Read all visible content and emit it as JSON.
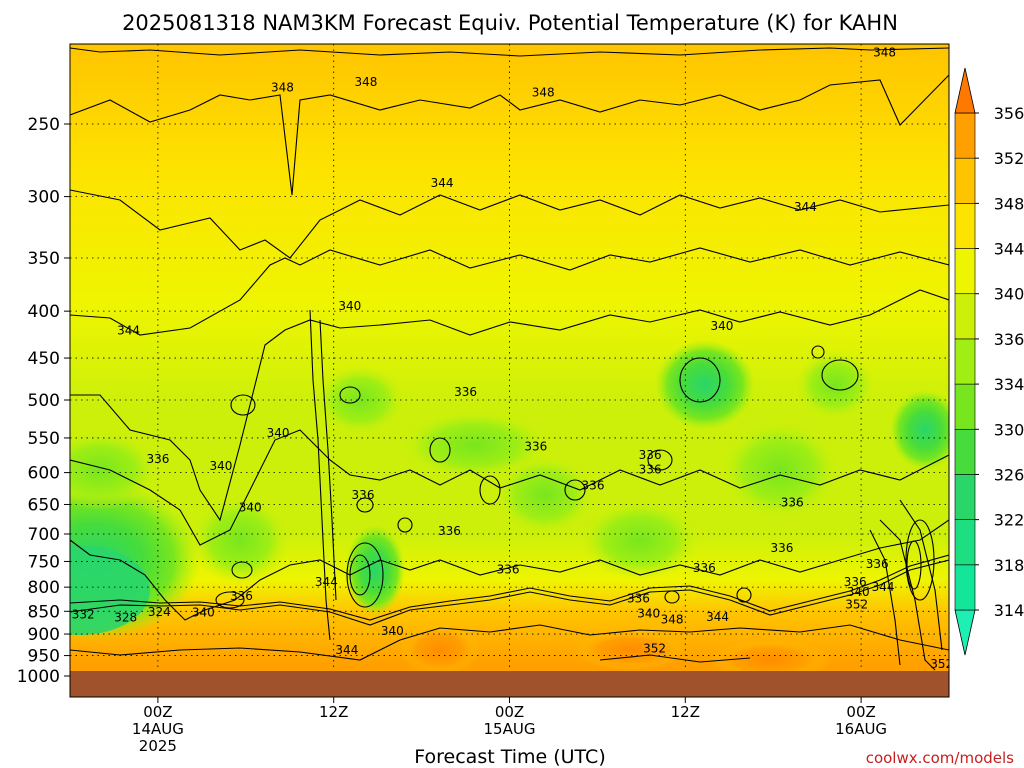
{
  "chart_data": {
    "type": "heatmap",
    "title": "2025081318 NAM3KM Forecast Equiv. Potential Temperature (K) for KAHN",
    "xlabel": "Forecast Time (UTC)",
    "ylabel": "",
    "y_scale": "log",
    "y_reversed": true,
    "y_ticks": [
      250,
      300,
      350,
      400,
      450,
      500,
      550,
      600,
      650,
      700,
      750,
      800,
      850,
      900,
      950,
      1000
    ],
    "ylim": [
      200,
      1000
    ],
    "x_ticks": [
      {
        "hour": 6,
        "lines": [
          "00Z",
          "14AUG",
          "2025"
        ]
      },
      {
        "hour": 18,
        "lines": [
          "12Z",
          "",
          ""
        ]
      },
      {
        "hour": 30,
        "lines": [
          "00Z",
          "15AUG",
          ""
        ]
      },
      {
        "hour": 42,
        "lines": [
          "12Z",
          "",
          ""
        ]
      },
      {
        "hour": 54,
        "lines": [
          "00Z",
          "16AUG",
          ""
        ]
      }
    ],
    "xlim": [
      0,
      60
    ],
    "grid": true,
    "colorbar": {
      "levels": [
        314,
        318,
        322,
        326,
        330,
        334,
        336,
        340,
        344,
        348,
        352,
        356
      ],
      "bands": [
        {
          "from": 310,
          "to": 314,
          "color": "#1ef0b4"
        },
        {
          "from": 314,
          "to": 318,
          "color": "#14e699"
        },
        {
          "from": 318,
          "to": 322,
          "color": "#1ede82"
        },
        {
          "from": 322,
          "to": 326,
          "color": "#2ad66a"
        },
        {
          "from": 326,
          "to": 330,
          "color": "#46dc3c"
        },
        {
          "from": 330,
          "to": 334,
          "color": "#78e61e"
        },
        {
          "from": 334,
          "to": 336,
          "color": "#a0ee14"
        },
        {
          "from": 336,
          "to": 340,
          "color": "#ccf00a"
        },
        {
          "from": 340,
          "to": 344,
          "color": "#eef500"
        },
        {
          "from": 344,
          "to": 348,
          "color": "#fde400"
        },
        {
          "from": 348,
          "to": 352,
          "color": "#ffc400"
        },
        {
          "from": 352,
          "to": 356,
          "color": "#ffa000"
        },
        {
          "from": 356,
          "to": 360,
          "color": "#ff7800"
        }
      ]
    },
    "contour_labels": [
      {
        "hour": 14.5,
        "p": 228,
        "v": "348"
      },
      {
        "hour": 20.2,
        "p": 225,
        "v": "348"
      },
      {
        "hour": 32.3,
        "p": 231,
        "v": "348"
      },
      {
        "hour": 55.6,
        "p": 209,
        "v": "348"
      },
      {
        "hour": 25.4,
        "p": 290,
        "v": "344"
      },
      {
        "hour": 50.2,
        "p": 308,
        "v": "344"
      },
      {
        "hour": 4.0,
        "p": 420,
        "v": "344"
      },
      {
        "hour": 19.1,
        "p": 395,
        "v": "340"
      },
      {
        "hour": 44.5,
        "p": 415,
        "v": "340"
      },
      {
        "hour": 14.2,
        "p": 543,
        "v": "340"
      },
      {
        "hour": 10.3,
        "p": 590,
        "v": "340"
      },
      {
        "hour": 12.3,
        "p": 655,
        "v": "340"
      },
      {
        "hour": 6.0,
        "p": 580,
        "v": "336"
      },
      {
        "hour": 27.0,
        "p": 490,
        "v": "336"
      },
      {
        "hour": 31.8,
        "p": 562,
        "v": "336"
      },
      {
        "hour": 39.6,
        "p": 574,
        "v": "336"
      },
      {
        "hour": 39.6,
        "p": 595,
        "v": "336"
      },
      {
        "hour": 35.7,
        "p": 620,
        "v": "336"
      },
      {
        "hour": 20.0,
        "p": 635,
        "v": "336"
      },
      {
        "hour": 25.9,
        "p": 695,
        "v": "336"
      },
      {
        "hour": 49.3,
        "p": 647,
        "v": "336"
      },
      {
        "hour": 48.6,
        "p": 725,
        "v": "336"
      },
      {
        "hour": 43.3,
        "p": 762,
        "v": "336"
      },
      {
        "hour": 29.9,
        "p": 765,
        "v": "336"
      },
      {
        "hour": 38.8,
        "p": 823,
        "v": "336"
      },
      {
        "hour": 11.7,
        "p": 818,
        "v": "336"
      },
      {
        "hour": 53.6,
        "p": 790,
        "v": "336"
      },
      {
        "hour": 55.1,
        "p": 755,
        "v": "336"
      },
      {
        "hour": 17.5,
        "p": 790,
        "v": "344"
      },
      {
        "hour": 53.8,
        "p": 810,
        "v": "340"
      },
      {
        "hour": 55.5,
        "p": 800,
        "v": "344"
      },
      {
        "hour": 53.7,
        "p": 836,
        "v": "352"
      },
      {
        "hour": 0.9,
        "p": 857,
        "v": "332"
      },
      {
        "hour": 3.8,
        "p": 863,
        "v": "328"
      },
      {
        "hour": 6.1,
        "p": 852,
        "v": "324"
      },
      {
        "hour": 9.1,
        "p": 853,
        "v": "340"
      },
      {
        "hour": 22.0,
        "p": 893,
        "v": "340"
      },
      {
        "hour": 18.9,
        "p": 937,
        "v": "344"
      },
      {
        "hour": 39.5,
        "p": 855,
        "v": "340"
      },
      {
        "hour": 41.1,
        "p": 868,
        "v": "348"
      },
      {
        "hour": 44.2,
        "p": 862,
        "v": "344"
      },
      {
        "hour": 39.9,
        "p": 933,
        "v": "352"
      },
      {
        "hour": 59.5,
        "p": 970,
        "v": "352"
      }
    ]
  },
  "credit": "coolwx.com/models"
}
